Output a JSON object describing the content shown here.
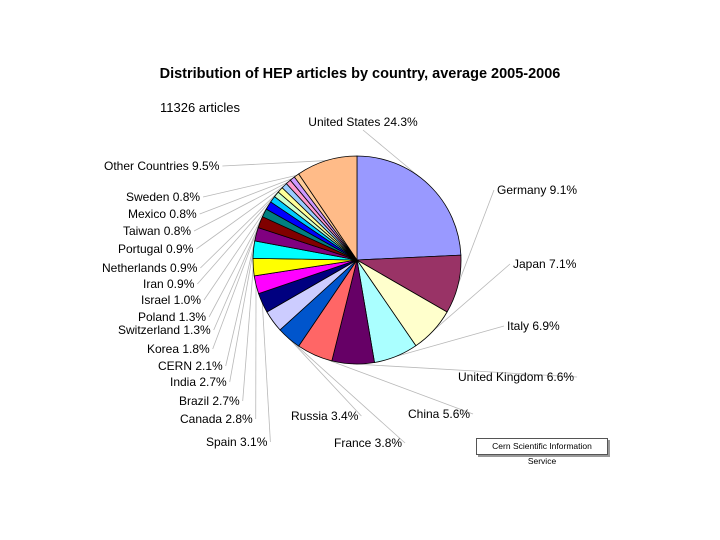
{
  "chart_data": {
    "type": "pie",
    "title": "Distribution of HEP articles by country, average 2005-2006",
    "subtitle": "11326 articles",
    "slices": [
      {
        "name": "United States",
        "value": 24.3,
        "label": "United States 24.3%",
        "color": "#9999ff"
      },
      {
        "name": "Germany",
        "value": 9.1,
        "label": "Germany 9.1%",
        "color": "#993366"
      },
      {
        "name": "Japan",
        "value": 7.1,
        "label": "Japan 7.1%",
        "color": "#ffffcc"
      },
      {
        "name": "Italy",
        "value": 6.9,
        "label": "Italy 6.9%",
        "color": "#aaffff"
      },
      {
        "name": "United Kingdom",
        "value": 6.6,
        "label": "United Kingdom 6.6%",
        "color": "#660066"
      },
      {
        "name": "China",
        "value": 5.6,
        "label": "China 5.6%",
        "color": "#ff6666"
      },
      {
        "name": "France",
        "value": 3.8,
        "label": "France 3.8%",
        "color": "#0055cc"
      },
      {
        "name": "Russia",
        "value": 3.4,
        "label": "Russia 3.4%",
        "color": "#ccccff"
      },
      {
        "name": "Spain",
        "value": 3.1,
        "label": "Spain 3.1%",
        "color": "#000080"
      },
      {
        "name": "Canada",
        "value": 2.8,
        "label": "Canada 2.8%",
        "color": "#ff00ff"
      },
      {
        "name": "Brazil",
        "value": 2.7,
        "label": "Brazil 2.7%",
        "color": "#ffff00"
      },
      {
        "name": "India",
        "value": 2.7,
        "label": "India 2.7%",
        "color": "#00ffff"
      },
      {
        "name": "CERN",
        "value": 2.1,
        "label": "CERN 2.1%",
        "color": "#800080"
      },
      {
        "name": "Korea",
        "value": 1.8,
        "label": "Korea 1.8%",
        "color": "#800000"
      },
      {
        "name": "Switzerland",
        "value": 1.3,
        "label": "Switzerland 1.3%",
        "color": "#008080"
      },
      {
        "name": "Poland",
        "value": 1.3,
        "label": "Poland 1.3%",
        "color": "#0000ff"
      },
      {
        "name": "Israel",
        "value": 1.0,
        "label": "Israel 1.0%",
        "color": "#00ccff"
      },
      {
        "name": "Iran",
        "value": 0.9,
        "label": "Iran 0.9%",
        "color": "#ccffcc"
      },
      {
        "name": "Netherlands",
        "value": 0.9,
        "label": "Netherlands 0.9%",
        "color": "#ffff99"
      },
      {
        "name": "Portugal",
        "value": 0.9,
        "label": "Portugal 0.9%",
        "color": "#99ccff"
      },
      {
        "name": "Taiwan",
        "value": 0.8,
        "label": "Taiwan 0.8%",
        "color": "#ff99cc"
      },
      {
        "name": "Mexico",
        "value": 0.8,
        "label": "Mexico 0.8%",
        "color": "#cc99ff"
      },
      {
        "name": "Sweden",
        "value": 0.8,
        "label": "Sweden 0.8%",
        "color": "#ffcc99"
      },
      {
        "name": "Other Countries",
        "value": 9.5,
        "label": "Other Countries 9.5%",
        "color": "#ffbb88"
      }
    ],
    "source": "Cern Scientific Information Service"
  }
}
